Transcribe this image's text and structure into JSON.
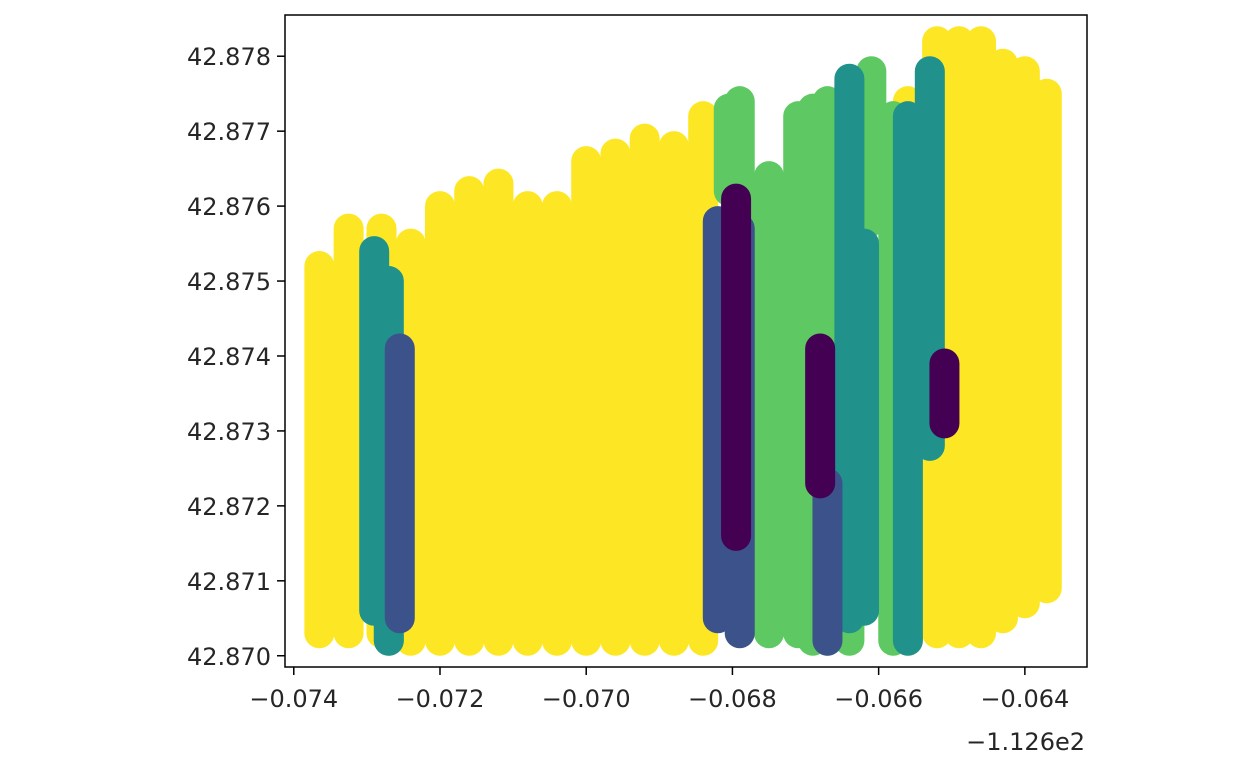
{
  "chart_data": {
    "type": "scatter",
    "title": "",
    "xlabel": "",
    "ylabel": "",
    "x_offset_label": "−1.126e2",
    "xlim": [
      -0.07412,
      -0.06315
    ],
    "ylim": [
      42.86985,
      42.87855
    ],
    "x_ticks": [
      -0.074,
      -0.072,
      -0.07,
      -0.068,
      -0.066,
      -0.064
    ],
    "x_tick_labels": [
      "−0.074",
      "−0.072",
      "−0.070",
      "−0.068",
      "−0.066",
      "−0.064"
    ],
    "y_ticks": [
      42.87,
      42.871,
      42.872,
      42.873,
      42.874,
      42.875,
      42.876,
      42.877,
      42.878
    ],
    "y_tick_labels": [
      "42.870",
      "42.871",
      "42.872",
      "42.873",
      "42.874",
      "42.875",
      "42.876",
      "42.877",
      "42.878"
    ],
    "grid": false,
    "legend": "none",
    "colors": {
      "yellow": "#fde725",
      "light_green": "#5ec962",
      "teal": "#21918c",
      "blue": "#3b528b",
      "purple": "#440154"
    },
    "series": [
      {
        "color": "yellow",
        "tracks": [
          {
            "x": -0.07365,
            "y": [
              42.8703,
              42.8752
            ]
          },
          {
            "x": -0.07325,
            "y": [
              42.8703,
              42.8757
            ]
          },
          {
            "x": -0.0728,
            "y": [
              42.8703,
              42.8757
            ]
          },
          {
            "x": -0.0724,
            "y": [
              42.8702,
              42.8755
            ]
          },
          {
            "x": -0.072,
            "y": [
              42.8702,
              42.876
            ]
          },
          {
            "x": -0.0716,
            "y": [
              42.8702,
              42.8762
            ]
          },
          {
            "x": -0.0712,
            "y": [
              42.8702,
              42.8763
            ]
          },
          {
            "x": -0.0708,
            "y": [
              42.8702,
              42.876
            ]
          },
          {
            "x": -0.0704,
            "y": [
              42.8702,
              42.876
            ]
          },
          {
            "x": -0.07,
            "y": [
              42.8702,
              42.8766
            ]
          },
          {
            "x": -0.0696,
            "y": [
              42.8702,
              42.8767
            ]
          },
          {
            "x": -0.0692,
            "y": [
              42.8702,
              42.8769
            ]
          },
          {
            "x": -0.0688,
            "y": [
              42.8702,
              42.8768
            ]
          },
          {
            "x": -0.0684,
            "y": [
              42.8702,
              42.8772
            ]
          },
          {
            "x": -0.0656,
            "y": [
              42.8702,
              42.8774
            ]
          },
          {
            "x": -0.0652,
            "y": [
              42.8703,
              42.8782
            ]
          },
          {
            "x": -0.0649,
            "y": [
              42.8703,
              42.8782
            ]
          },
          {
            "x": -0.0646,
            "y": [
              42.8703,
              42.8782
            ]
          },
          {
            "x": -0.0643,
            "y": [
              42.8705,
              42.8779
            ]
          },
          {
            "x": -0.064,
            "y": [
              42.8707,
              42.8778
            ]
          },
          {
            "x": -0.0637,
            "y": [
              42.8709,
              42.8775
            ]
          },
          {
            "x": -0.0653,
            "y": [
              42.8731,
              42.8737
            ]
          }
        ]
      },
      {
        "color": "light_green",
        "tracks": [
          {
            "x": -0.06805,
            "y": [
              42.8762,
              42.8773
            ]
          },
          {
            "x": -0.0679,
            "y": [
              42.8706,
              42.8774
            ]
          },
          {
            "x": -0.0675,
            "y": [
              42.8703,
              42.8764
            ]
          },
          {
            "x": -0.0671,
            "y": [
              42.8703,
              42.8772
            ]
          },
          {
            "x": -0.0669,
            "y": [
              42.8702,
              42.8773
            ]
          },
          {
            "x": -0.0667,
            "y": [
              42.8702,
              42.8774
            ]
          },
          {
            "x": -0.0664,
            "y": [
              42.8702,
              42.8776
            ]
          },
          {
            "x": -0.0661,
            "y": [
              42.8758,
              42.8778
            ]
          },
          {
            "x": -0.0658,
            "y": [
              42.8702,
              42.8772
            ]
          },
          {
            "x": -0.0727,
            "y": [
              42.8702,
              42.8709
            ]
          }
        ]
      },
      {
        "color": "teal",
        "tracks": [
          {
            "x": -0.0729,
            "y": [
              42.8706,
              42.8754
            ]
          },
          {
            "x": -0.0727,
            "y": [
              42.8702,
              42.875
            ]
          },
          {
            "x": -0.0664,
            "y": [
              42.8705,
              42.8777
            ]
          },
          {
            "x": -0.0662,
            "y": [
              42.8706,
              42.8755
            ]
          },
          {
            "x": -0.0656,
            "y": [
              42.8702,
              42.8772
            ]
          },
          {
            "x": -0.0653,
            "y": [
              42.8728,
              42.8778
            ]
          }
        ]
      },
      {
        "color": "blue",
        "tracks": [
          {
            "x": -0.07255,
            "y": [
              42.8705,
              42.8741
            ]
          },
          {
            "x": -0.0682,
            "y": [
              42.8705,
              42.8758
            ]
          },
          {
            "x": -0.0679,
            "y": [
              42.8703,
              42.8757
            ]
          },
          {
            "x": -0.0667,
            "y": [
              42.8702,
              42.8723
            ]
          }
        ]
      },
      {
        "color": "purple",
        "tracks": [
          {
            "x": -0.06795,
            "y": [
              42.8716,
              42.8761
            ]
          },
          {
            "x": -0.0668,
            "y": [
              42.8723,
              42.8741
            ]
          },
          {
            "x": -0.0651,
            "y": [
              42.8731,
              42.8739
            ]
          }
        ]
      }
    ]
  }
}
